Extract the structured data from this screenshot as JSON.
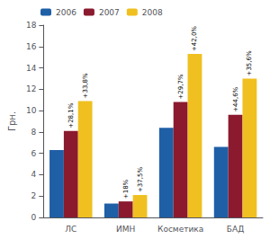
{
  "chart_data": {
    "type": "bar",
    "categories": [
      "ЛС",
      "ИМН",
      "Косметика",
      "БАД"
    ],
    "series": [
      {
        "name": "2006",
        "color": "#1f5fa6",
        "values": [
          6.3,
          1.3,
          8.4,
          6.6
        ]
      },
      {
        "name": "2007",
        "color": "#8b1a2e",
        "values": [
          8.1,
          1.5,
          10.8,
          9.6
        ],
        "annotations": [
          "+28,1%",
          "+18%",
          "+29,7%",
          "+44,6%"
        ]
      },
      {
        "name": "2008",
        "color": "#f0c020",
        "values": [
          10.9,
          2.1,
          15.3,
          13.0
        ],
        "annotations": [
          "+33,8%",
          "+37,5%",
          "+42,0%",
          "+35,6%"
        ]
      }
    ],
    "ylabel": "Грн.",
    "ylim": [
      0,
      18
    ],
    "yticks": [
      0,
      2,
      4,
      6,
      8,
      10,
      12,
      14,
      16,
      18
    ],
    "grid": false,
    "legend": "upper left"
  }
}
